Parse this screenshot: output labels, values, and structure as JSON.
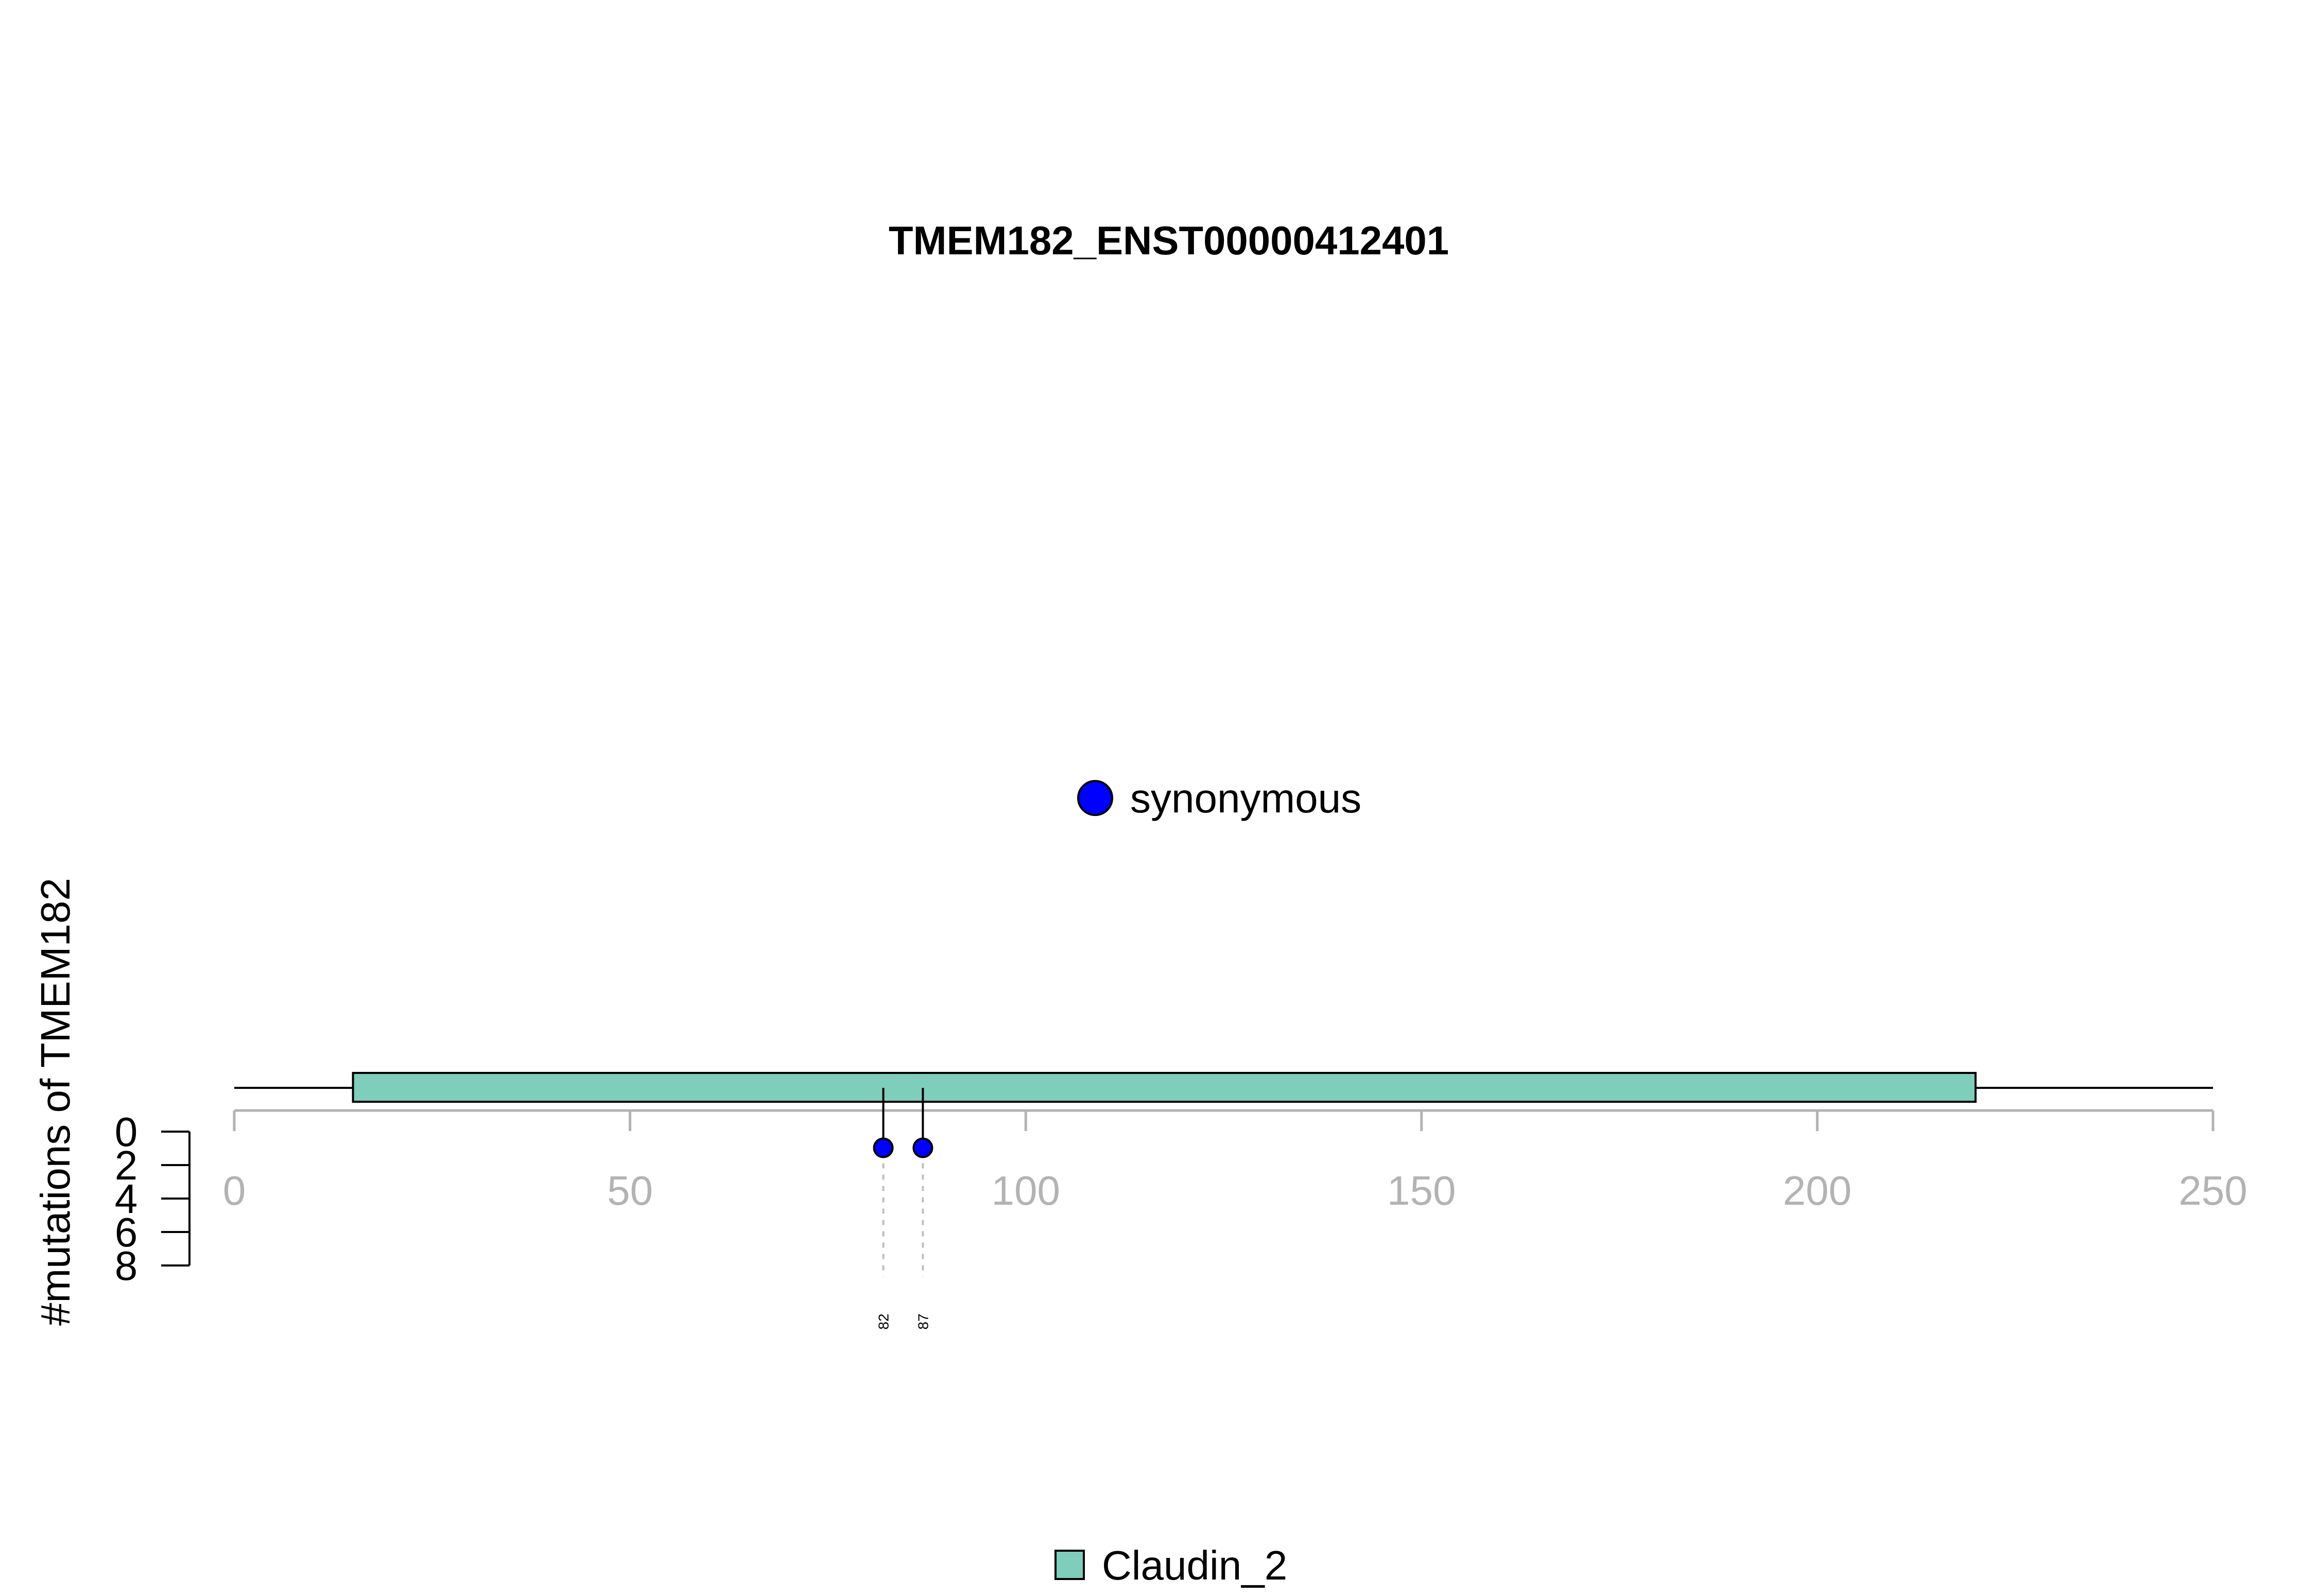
{
  "chart_data": {
    "type": "lollipop",
    "title": "TMEM182_ENST00000412401",
    "ylabel": "#mutations of TMEM182",
    "xlabel": "",
    "xlim": [
      0,
      250
    ],
    "x_ticks": [
      0,
      50,
      100,
      150,
      200,
      250
    ],
    "ylim": [
      0,
      8
    ],
    "y_ticks": [
      0,
      2,
      4,
      6,
      8
    ],
    "protein_length": 250,
    "domains": [
      {
        "name": "Claudin_2",
        "start": 15,
        "end": 220,
        "color": "#7fcdbb"
      }
    ],
    "mutations": [
      {
        "position": 82,
        "count": 1,
        "type": "synonymous",
        "label": "82"
      },
      {
        "position": 87,
        "count": 1,
        "type": "synonymous",
        "label": "87"
      }
    ],
    "mutation_legend": [
      {
        "type": "synonymous",
        "label": "synonymous",
        "color": "#0000ff"
      }
    ],
    "domain_legend": [
      {
        "label": "Claudin_2",
        "color": "#7fcdbb"
      }
    ],
    "colors": {
      "axis": "#b3b3b3",
      "stroke": "#000000",
      "guide": "#bebebe"
    }
  }
}
